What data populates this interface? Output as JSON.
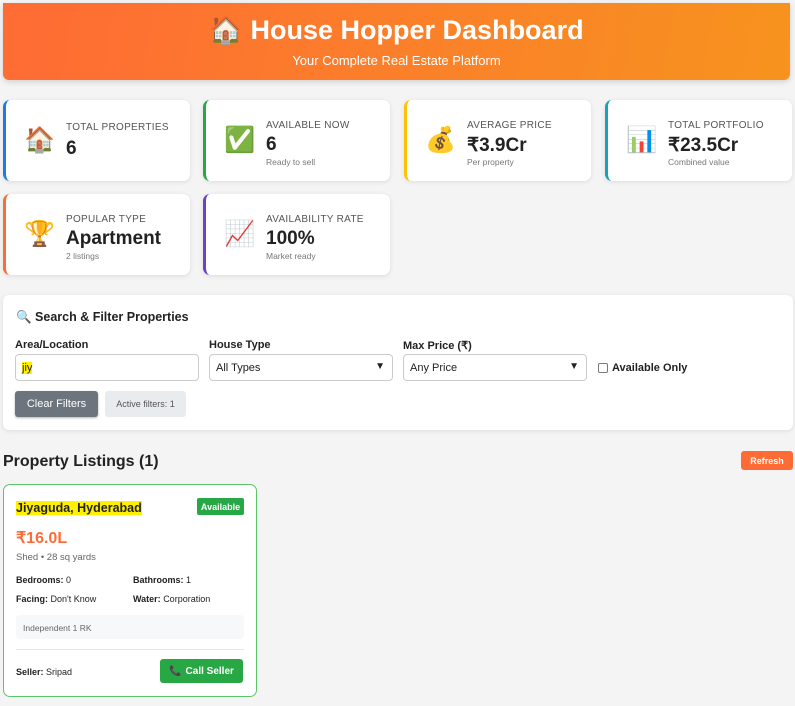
{
  "header": {
    "icon": "house-icon",
    "title": "🏠 House Hopper Dashboard",
    "subtitle": "Your Complete Real Estate Platform"
  },
  "stats": [
    {
      "icon": "🏠",
      "label": "TOTAL PROPERTIES",
      "value": "6",
      "sub": "",
      "color": "#1e7be6"
    },
    {
      "icon": "✅",
      "label": "AVAILABLE NOW",
      "value": "6",
      "sub": "Ready to sell",
      "color": "#28a745"
    },
    {
      "icon": "💰",
      "label": "AVERAGE PRICE",
      "value": "₹3.9Cr",
      "sub": "Per property",
      "color": "#ffc107"
    },
    {
      "icon": "📊",
      "label": "TOTAL PORTFOLIO",
      "value": "₹23.5Cr",
      "sub": "Combined value",
      "color": "#17a2b8"
    },
    {
      "icon": "🏆",
      "label": "POPULAR TYPE",
      "value": "Apartment",
      "sub": "2 listings",
      "color": "#ff6b35"
    },
    {
      "icon": "📈",
      "label": "AVAILABILITY RATE",
      "value": "100%",
      "sub": "Market ready",
      "color": "#6f42c1"
    }
  ],
  "filters": {
    "title": "🔍 Search & Filter Properties",
    "area_label": "Area/Location",
    "area_value": "jiy",
    "type_label": "House Type",
    "type_value": "All Types",
    "price_label": "Max Price (₹)",
    "price_value": "Any Price",
    "available_label": "Available Only",
    "available_checked": false,
    "clear_label": "Clear Filters",
    "active_text": "Active filters: 1"
  },
  "listings": {
    "heading": "Property Listings (1)",
    "refresh_label": "Refresh",
    "items": [
      {
        "location": "Jiyaguda, Hyderabad",
        "status": "Available",
        "price": "₹16.0L",
        "meta": "Shed • 28 sq yards",
        "bedrooms_label": "Bedrooms:",
        "bedrooms": "0",
        "bathrooms_label": "Bathrooms:",
        "bathrooms": "1",
        "facing_label": "Facing:",
        "facing": "Don't Know",
        "water_label": "Water:",
        "water": "Corporation",
        "description": "Independent 1 RK",
        "seller_label": "Seller:",
        "seller": "Sripad",
        "call_label": "Call Seller",
        "call_icon": "📞"
      }
    ]
  }
}
